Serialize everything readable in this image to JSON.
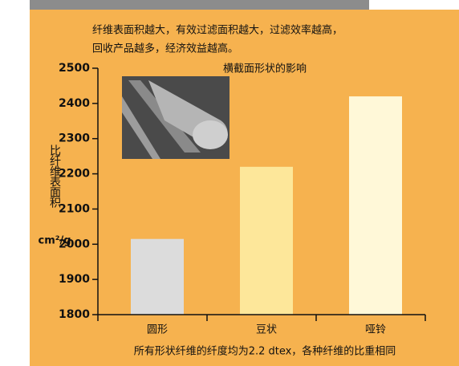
{
  "chart_data": {
    "type": "bar",
    "note_lines": [
      "纤维表面积越大，有效过滤面积越大，过滤效率越高，",
      "回收产品越多，经济效益越高。"
    ],
    "title": "横截面形状的影响",
    "y_label": "比纤维表面积",
    "y_unit": "cm²/g",
    "footnote": "所有形状纤维的纤度均为2.2 dtex，各种纤维的比重相同",
    "categories": [
      "圆形",
      "豆状",
      "哑铃"
    ],
    "values": [
      2015,
      2220,
      2420
    ],
    "colors": [
      "#dcdcdc",
      "#fde79a",
      "#fff8d8"
    ],
    "ylim": [
      1800,
      2500
    ],
    "yticks": [
      1800,
      1900,
      2000,
      2100,
      2200,
      2300,
      2400,
      2500
    ]
  }
}
